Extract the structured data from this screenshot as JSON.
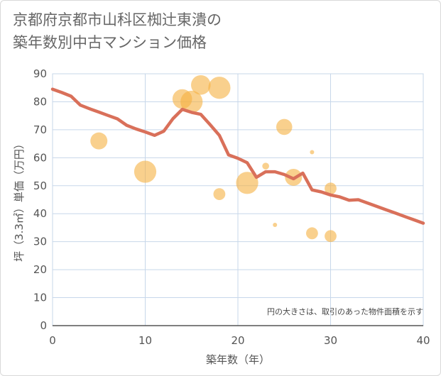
{
  "chart_data": {
    "type": "scatter",
    "title": "京都府京都市山科区椥辻東潰の\n築年数別中古マンション価格",
    "xlabel": "築年数（年）",
    "ylabel": "坪（3.3㎡）単価（万円）",
    "xlim": [
      0,
      40
    ],
    "ylim": [
      0,
      90
    ],
    "xticks": [
      0,
      10,
      20,
      30,
      40
    ],
    "yticks": [
      0,
      10,
      20,
      30,
      40,
      50,
      60,
      70,
      80,
      90
    ],
    "grid": true,
    "note": "円の大きさは、取引のあった物件面積を示す",
    "colors": {
      "bubble": "#f5b041",
      "line": "#d9705a",
      "grid": "#c7d7ea",
      "axis": "#555555"
    },
    "bubbles": [
      {
        "x": 5,
        "y": 66,
        "size": 3
      },
      {
        "x": 10,
        "y": 55,
        "size": 4
      },
      {
        "x": 14,
        "y": 81,
        "size": 3.5
      },
      {
        "x": 15,
        "y": 80,
        "size": 4
      },
      {
        "x": 16,
        "y": 86,
        "size": 3.5
      },
      {
        "x": 18,
        "y": 85,
        "size": 4
      },
      {
        "x": 18,
        "y": 47,
        "size": 2
      },
      {
        "x": 21,
        "y": 51,
        "size": 4
      },
      {
        "x": 23,
        "y": 57,
        "size": 1
      },
      {
        "x": 24,
        "y": 36,
        "size": 0.5
      },
      {
        "x": 25,
        "y": 71,
        "size": 2.8
      },
      {
        "x": 26,
        "y": 53,
        "size": 3
      },
      {
        "x": 28,
        "y": 62,
        "size": 0.5
      },
      {
        "x": 28,
        "y": 33,
        "size": 2
      },
      {
        "x": 30,
        "y": 49,
        "size": 2
      },
      {
        "x": 30,
        "y": 32,
        "size": 2
      }
    ],
    "trend": {
      "x": [
        0,
        1,
        2,
        3,
        4,
        5,
        6,
        7,
        8,
        9,
        10,
        11,
        12,
        13,
        14,
        15,
        16,
        17,
        18,
        19,
        20,
        21,
        22,
        23,
        24,
        25,
        26,
        27,
        28,
        29,
        30,
        31,
        32,
        33,
        34,
        35,
        36,
        37,
        38,
        39,
        40
      ],
      "y": [
        84.5,
        83.3,
        82,
        78.8,
        77.5,
        76.3,
        75.1,
        73.9,
        71.6,
        70.3,
        69.2,
        68,
        69.5,
        74,
        77.3,
        76.2,
        75.5,
        71.8,
        68,
        61,
        59.8,
        58.2,
        53,
        55,
        55,
        54,
        52.5,
        54.5,
        48.5,
        47.8,
        46.7,
        46,
        44.8,
        45,
        43.8,
        42.6,
        41.4,
        40.2,
        39,
        37.8,
        36.6
      ]
    }
  }
}
